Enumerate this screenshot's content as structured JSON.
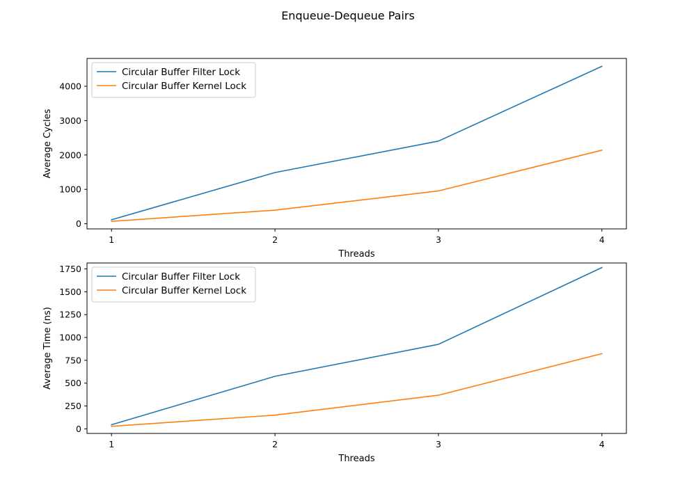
{
  "figure": {
    "title": "Enqueue-Dequeue Pairs"
  },
  "chart_data": [
    {
      "type": "line",
      "xlabel": "Threads",
      "ylabel": "Average Cycles",
      "x": [
        1,
        2,
        3,
        4
      ],
      "xlim": [
        0.85,
        4.15
      ],
      "ylim": [
        -150,
        4810
      ],
      "xticks": [
        1,
        2,
        3,
        4
      ],
      "yticks": [
        0,
        1000,
        2000,
        3000,
        4000
      ],
      "legend_position": "top-left",
      "grid": false,
      "series": [
        {
          "name": "Circular Buffer Filter Lock",
          "color": "#1f77b4",
          "values": [
            115,
            1490,
            2405,
            4580
          ]
        },
        {
          "name": "Circular Buffer Kernel Lock",
          "color": "#ff7f0e",
          "values": [
            70,
            395,
            955,
            2140
          ]
        }
      ]
    },
    {
      "type": "line",
      "xlabel": "Threads",
      "ylabel": "Average Time (ns)",
      "x": [
        1,
        2,
        3,
        4
      ],
      "xlim": [
        0.85,
        4.15
      ],
      "ylim": [
        -50,
        1815
      ],
      "xticks": [
        1,
        2,
        3,
        4
      ],
      "yticks": [
        0,
        250,
        500,
        750,
        1000,
        1250,
        1500,
        1750
      ],
      "legend_position": "top-left",
      "grid": false,
      "series": [
        {
          "name": "Circular Buffer Filter Lock",
          "color": "#1f77b4",
          "values": [
            45,
            575,
            925,
            1765
          ]
        },
        {
          "name": "Circular Buffer Kernel Lock",
          "color": "#ff7f0e",
          "values": [
            28,
            150,
            368,
            823
          ]
        }
      ]
    }
  ]
}
